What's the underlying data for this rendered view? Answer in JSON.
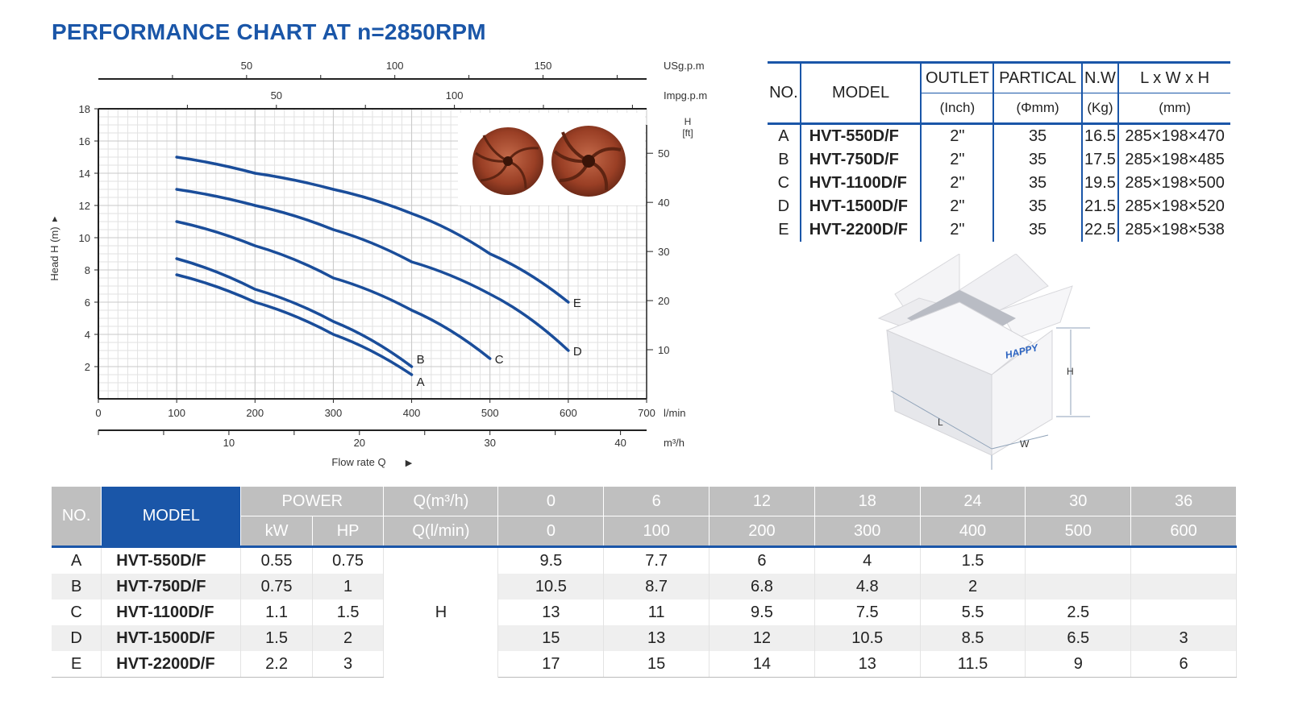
{
  "title": "PERFORMANCE CHART AT n=2850RPM",
  "chart_data": {
    "type": "line",
    "xlabel": "Flow rate Q",
    "ylabel": "Head H (m)",
    "x_unit": "l/min",
    "xlim": [
      0,
      700
    ],
    "ylim": [
      0,
      18
    ],
    "x_ticks": [
      0,
      100,
      200,
      300,
      400,
      500,
      600,
      700
    ],
    "y_ticks": [
      2,
      4,
      6,
      8,
      10,
      12,
      14,
      16,
      18
    ],
    "top_axis_usgpm": {
      "unit": "USg.p.m",
      "ticks": [
        50,
        100,
        150
      ]
    },
    "top_axis_impgpm": {
      "unit": "Impg.p.m",
      "ticks": [
        50,
        100
      ]
    },
    "right_axis_ft": {
      "unit": "H\n[ft]",
      "ticks": [
        10,
        20,
        30,
        40,
        50
      ]
    },
    "bottom_axis_m3h": {
      "unit": "m³/h",
      "ticks": [
        10,
        20,
        30,
        40
      ]
    },
    "grid": true,
    "series": [
      {
        "name": "A",
        "x": [
          100,
          200,
          300,
          400
        ],
        "y": [
          7.7,
          6,
          4,
          1.5
        ]
      },
      {
        "name": "B",
        "x": [
          100,
          200,
          300,
          400
        ],
        "y": [
          8.7,
          6.8,
          4.8,
          2
        ]
      },
      {
        "name": "C",
        "x": [
          100,
          200,
          300,
          400,
          500
        ],
        "y": [
          11,
          9.5,
          7.5,
          5.5,
          2.5
        ]
      },
      {
        "name": "D",
        "x": [
          100,
          200,
          300,
          400,
          500,
          600
        ],
        "y": [
          13,
          12,
          10.5,
          8.5,
          6.5,
          3
        ]
      },
      {
        "name": "E",
        "x": [
          100,
          200,
          300,
          400,
          500,
          600
        ],
        "y": [
          15,
          14,
          13,
          11.5,
          9,
          6
        ]
      }
    ],
    "line_color": "#1a4d9a"
  },
  "spec_table": {
    "headers1": [
      "NO.",
      "MODEL",
      "OUTLET",
      "PARTICAL",
      "N.W",
      "L x W x H"
    ],
    "headers2": [
      "(Inch)",
      "(Φmm)",
      "(Kg)",
      "(mm)"
    ],
    "rows": [
      [
        "A",
        "HVT-550D/F",
        "2\"",
        "35",
        "16.5",
        "285×198×470"
      ],
      [
        "B",
        "HVT-750D/F",
        "2\"",
        "35",
        "17.5",
        "285×198×485"
      ],
      [
        "C",
        "HVT-1100D/F",
        "2\"",
        "35",
        "19.5",
        "285×198×500"
      ],
      [
        "D",
        "HVT-1500D/F",
        "2\"",
        "35",
        "21.5",
        "285×198×520"
      ],
      [
        "E",
        "HVT-2200D/F",
        "2\"",
        "35",
        "22.5",
        "285×198×538"
      ]
    ]
  },
  "box": {
    "brand": "HAPPY",
    "labels": {
      "h": "H",
      "l": "L",
      "w": "W"
    }
  },
  "data_table": {
    "head": {
      "no": "NO.",
      "model": "MODEL",
      "power": "POWER",
      "kw": "kW",
      "hp": "HP",
      "q_m3h": "Q(m³/h)",
      "q_lmin": "Q(l/min)"
    },
    "q_m3h": [
      "0",
      "6",
      "12",
      "18",
      "24",
      "30",
      "36"
    ],
    "q_lmin": [
      "0",
      "100",
      "200",
      "300",
      "400",
      "500",
      "600"
    ],
    "h_label": "H",
    "rows": [
      {
        "no": "A",
        "model": "HVT-550D/F",
        "kw": "0.55",
        "hp": "0.75",
        "h": [
          "9.5",
          "7.7",
          "6",
          "4",
          "1.5",
          "",
          ""
        ]
      },
      {
        "no": "B",
        "model": "HVT-750D/F",
        "kw": "0.75",
        "hp": "1",
        "h": [
          "10.5",
          "8.7",
          "6.8",
          "4.8",
          "2",
          "",
          ""
        ]
      },
      {
        "no": "C",
        "model": "HVT-1100D/F",
        "kw": "1.1",
        "hp": "1.5",
        "h": [
          "13",
          "11",
          "9.5",
          "7.5",
          "5.5",
          "2.5",
          ""
        ]
      },
      {
        "no": "D",
        "model": "HVT-1500D/F",
        "kw": "1.5",
        "hp": "2",
        "h": [
          "15",
          "13",
          "12",
          "10.5",
          "8.5",
          "6.5",
          "3"
        ]
      },
      {
        "no": "E",
        "model": "HVT-2200D/F",
        "kw": "2.2",
        "hp": "3",
        "h": [
          "17",
          "15",
          "14",
          "13",
          "11.5",
          "9",
          "6"
        ]
      }
    ]
  }
}
